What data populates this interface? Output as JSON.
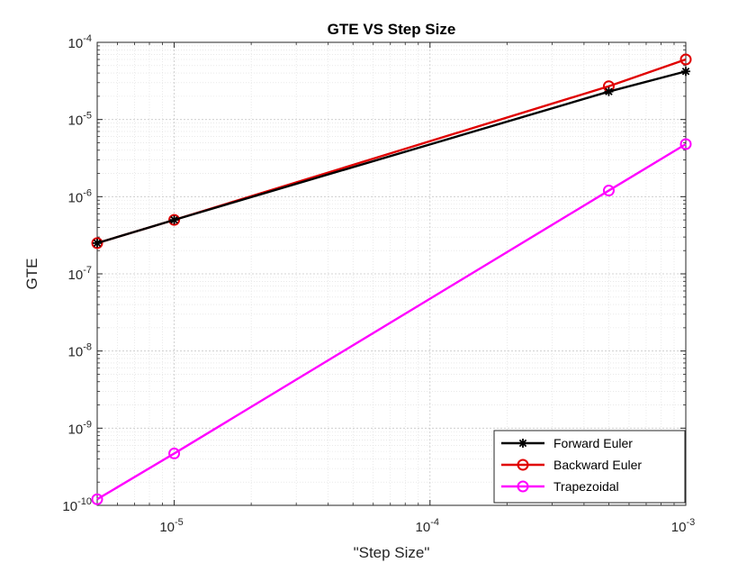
{
  "chart_data": {
    "type": "line",
    "title": "GTE VS Step Size",
    "xlabel": "\"Step Size\"",
    "ylabel": "GTE",
    "x_scale": "log",
    "y_scale": "log",
    "xlim": [
      5e-06,
      0.001
    ],
    "ylim": [
      1e-10,
      0.0001
    ],
    "x_ticks": [
      {
        "value": 1e-05,
        "base": "10",
        "exp": "-5"
      },
      {
        "value": 0.0001,
        "base": "10",
        "exp": "-4"
      },
      {
        "value": 0.001,
        "base": "10",
        "exp": "-3"
      }
    ],
    "y_ticks": [
      {
        "value": 1e-10,
        "base": "10",
        "exp": "-10"
      },
      {
        "value": 1e-09,
        "base": "10",
        "exp": "-9"
      },
      {
        "value": 1e-08,
        "base": "10",
        "exp": "-8"
      },
      {
        "value": 1e-07,
        "base": "10",
        "exp": "-7"
      },
      {
        "value": 1e-06,
        "base": "10",
        "exp": "-6"
      },
      {
        "value": 1e-05,
        "base": "10",
        "exp": "-5"
      },
      {
        "value": 0.0001,
        "base": "10",
        "exp": "-4"
      }
    ],
    "grid": true,
    "minor_grid": true,
    "legend_position": "bottom-right",
    "x": [
      5e-06,
      1e-05,
      0.0005,
      0.001
    ],
    "series": [
      {
        "name": "Forward Euler",
        "color": "#000000",
        "marker": "star",
        "values": [
          2.5e-07,
          5e-07,
          2.3e-05,
          4.2e-05
        ]
      },
      {
        "name": "Backward Euler",
        "color": "#e00000",
        "marker": "circle",
        "values": [
          2.5e-07,
          5e-07,
          2.7e-05,
          6e-05
        ]
      },
      {
        "name": "Trapezoidal",
        "color": "#ff00ff",
        "marker": "circle",
        "values": [
          1.2e-10,
          4.7e-10,
          1.2e-06,
          4.8e-06
        ]
      }
    ]
  }
}
